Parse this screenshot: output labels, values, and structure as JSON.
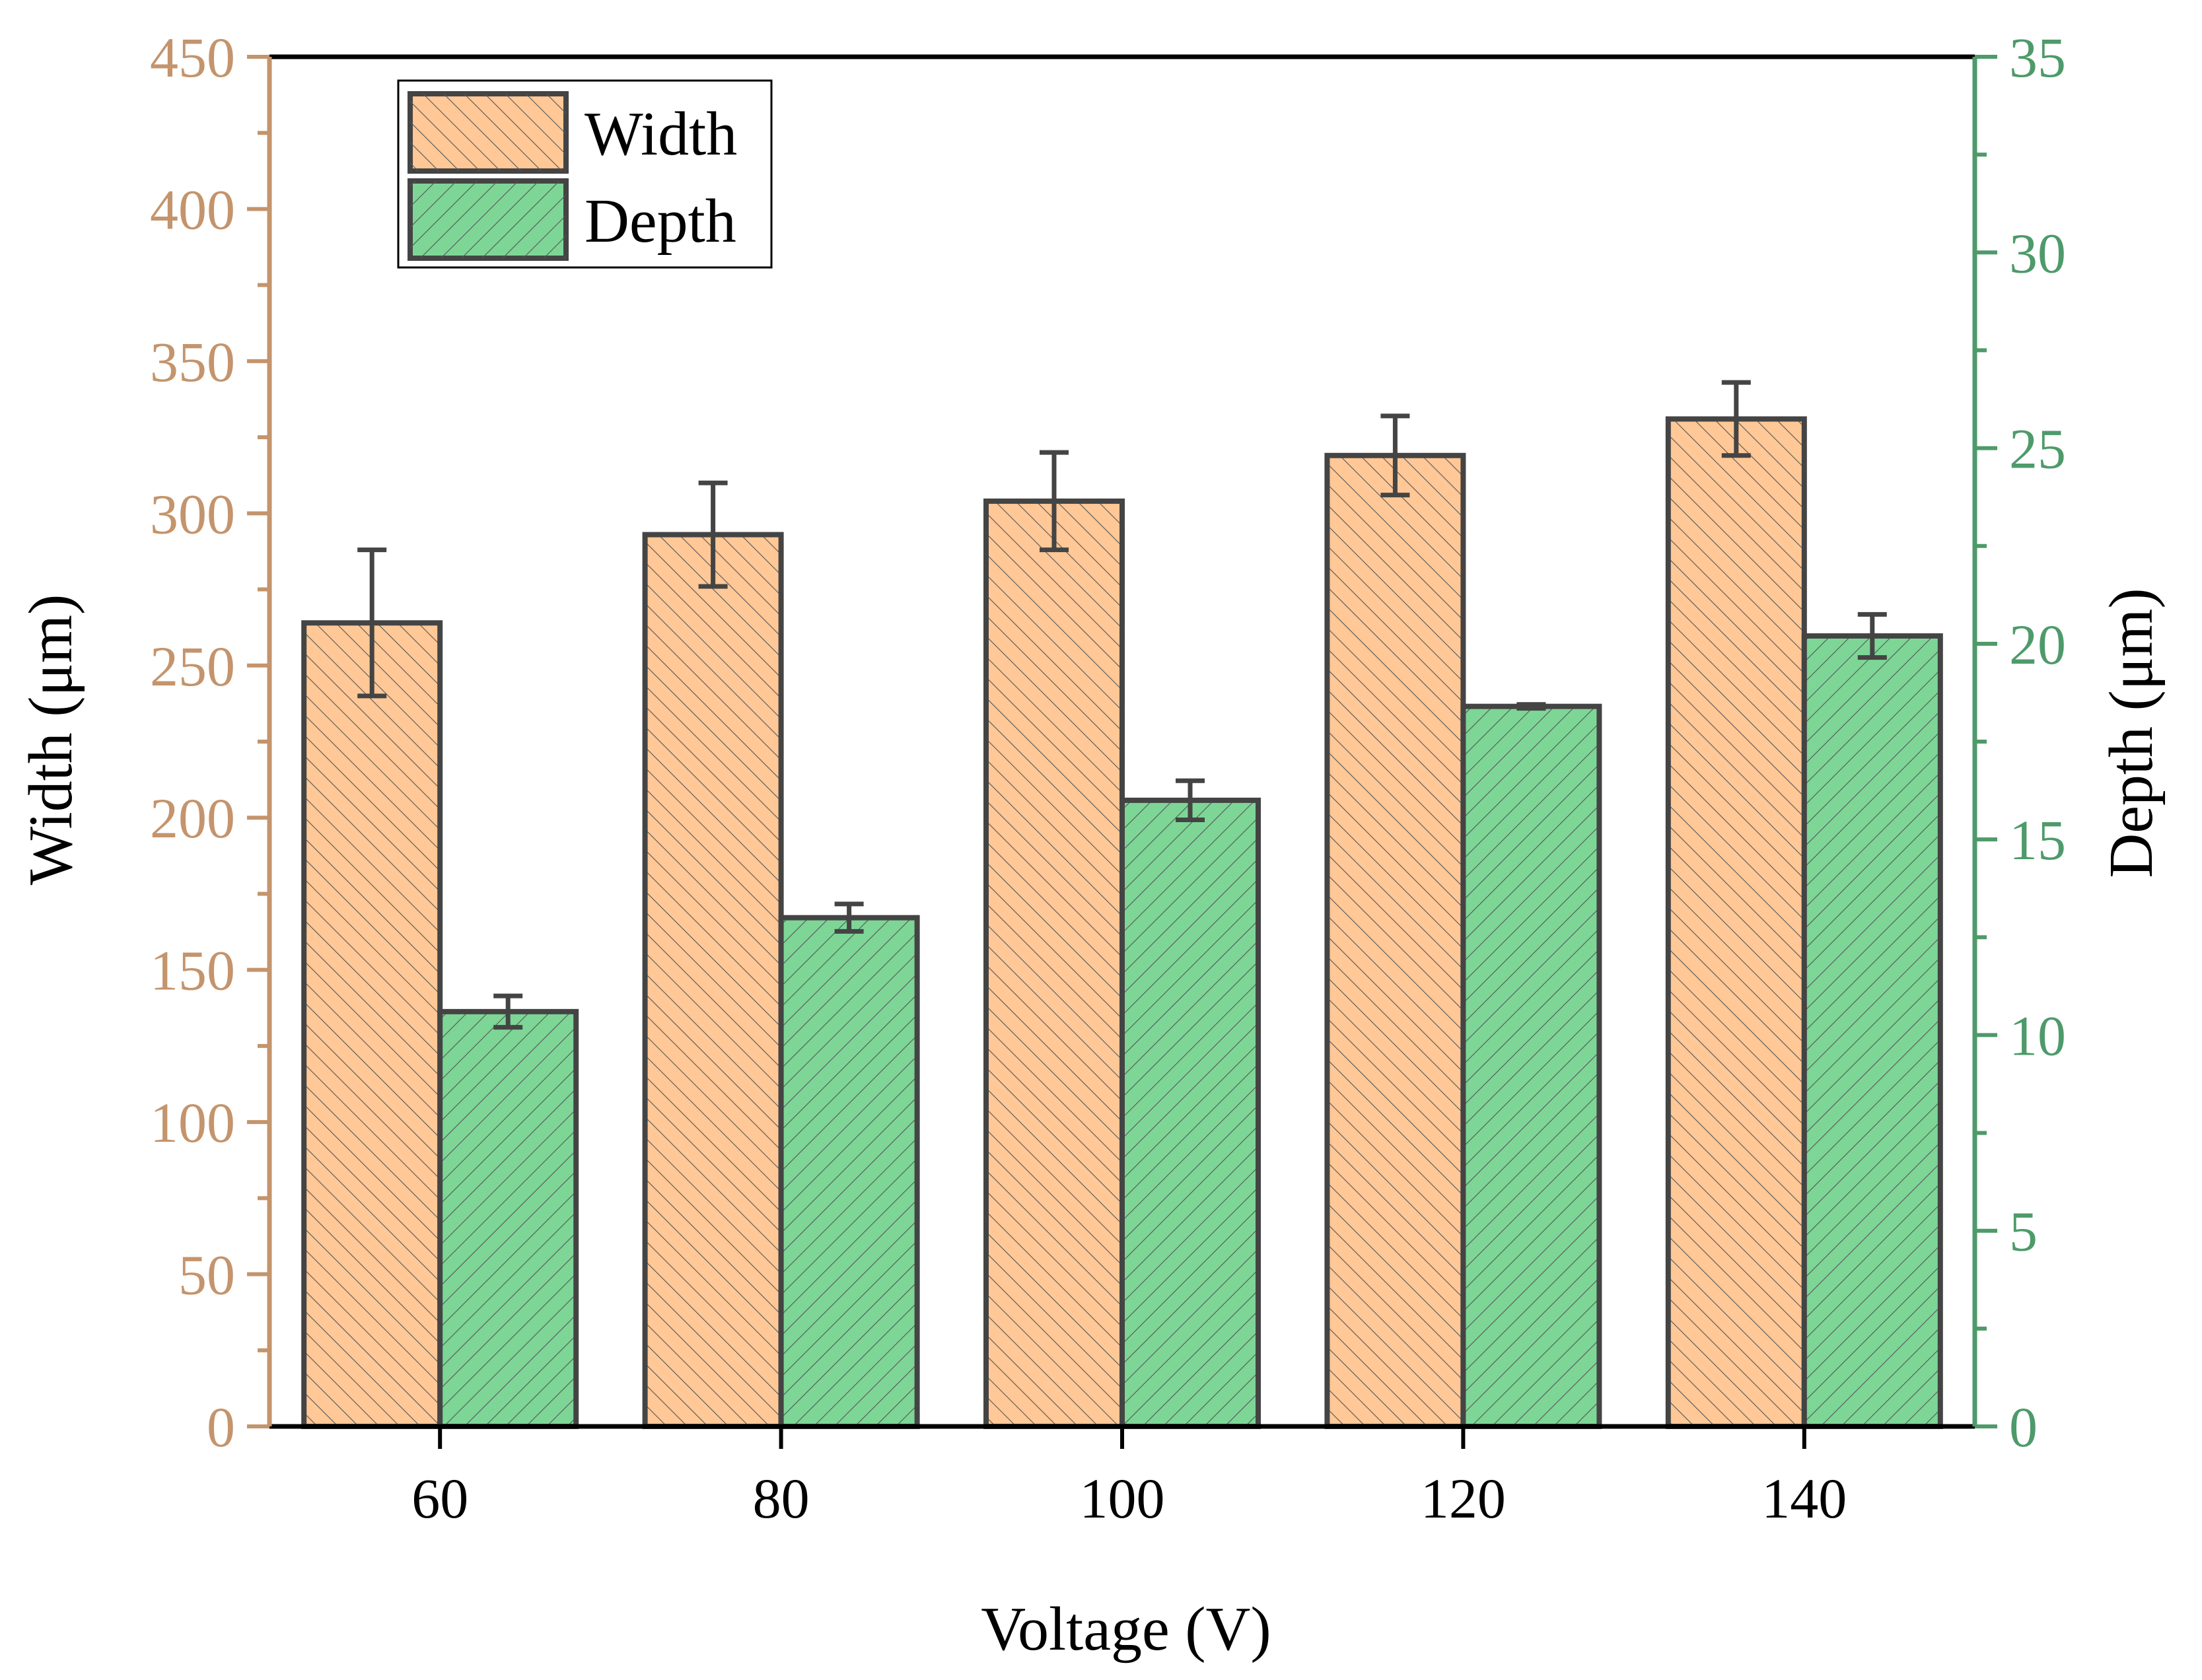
{
  "chart_data": {
    "type": "bar",
    "title": "",
    "categories": [
      "60",
      "80",
      "100",
      "120",
      "140"
    ],
    "xlabel": "Voltage (V)",
    "series": [
      {
        "name": "Width",
        "axis": "left",
        "values": [
          264,
          293,
          304,
          319,
          331
        ],
        "errors": [
          24,
          17,
          16,
          13,
          12
        ],
        "color": "#FFC896",
        "hatch": "backslash"
      },
      {
        "name": "Depth",
        "axis": "right",
        "values": [
          10.6,
          13,
          16,
          18.4,
          20.2
        ],
        "errors": [
          0.4,
          0.35,
          0.5,
          0.05,
          0.55
        ],
        "color": "#7DD696",
        "hatch": "slash"
      }
    ],
    "y_left": {
      "label": "Width (μm)",
      "range": [
        0,
        450
      ],
      "ticks": [
        "0",
        "50",
        "100",
        "150",
        "200",
        "250",
        "300",
        "350",
        "400",
        "450"
      ],
      "color": "#C4946C"
    },
    "y_right": {
      "label": "Depth (μm)",
      "range": [
        0,
        35
      ],
      "ticks": [
        "0",
        "5",
        "10",
        "15",
        "20",
        "25",
        "30",
        "35"
      ],
      "color": "#4E9A6A"
    },
    "legend": {
      "position": "top-left",
      "entries": [
        "Width",
        "Depth"
      ]
    },
    "grid": false
  }
}
